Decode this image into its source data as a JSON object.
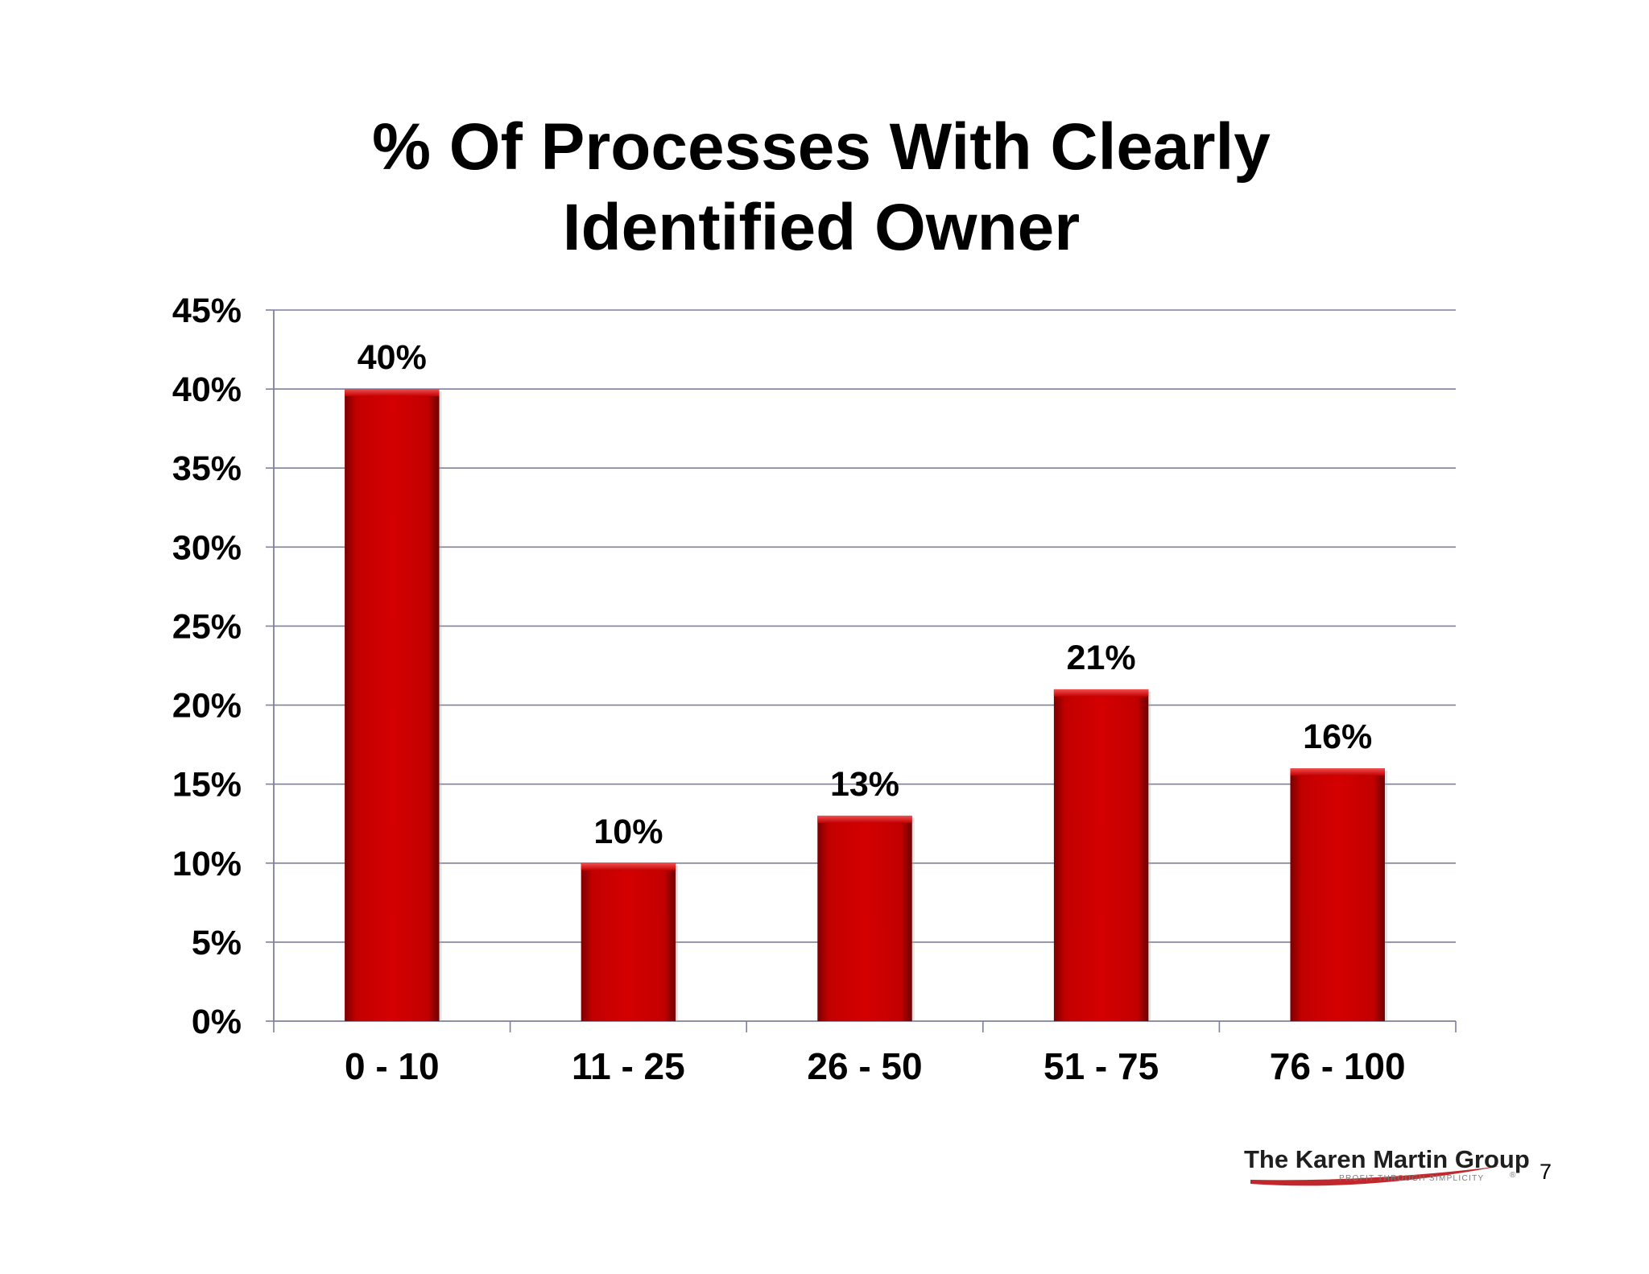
{
  "page": {
    "number": "7"
  },
  "logo": {
    "brand": "The Karen Martin Group",
    "tagline": "PROFIT THROUGH SIMPLICITY",
    "trademark": "®",
    "swoosh_color": "#c0282d"
  },
  "chart_data": {
    "type": "bar",
    "title": [
      "% Of Processes With Clearly",
      "Identified Owner"
    ],
    "xlabel": "",
    "ylabel": "",
    "categories": [
      "0 - 10",
      "11 - 25",
      "26 - 50",
      "51 - 75",
      "76 - 100"
    ],
    "values": [
      40,
      10,
      13,
      21,
      16
    ],
    "data_labels": [
      "40%",
      "10%",
      "13%",
      "21%",
      "16%"
    ],
    "ylim": [
      0,
      45
    ],
    "yticks": [
      0,
      5,
      10,
      15,
      20,
      25,
      30,
      35,
      40,
      45
    ],
    "ytick_labels": [
      "0%",
      "5%",
      "10%",
      "15%",
      "20%",
      "25%",
      "30%",
      "35%",
      "40%",
      "45%"
    ],
    "grid": true,
    "legend": "none",
    "bar_color": "#cc0000",
    "grid_color": "#7f7fa0"
  }
}
